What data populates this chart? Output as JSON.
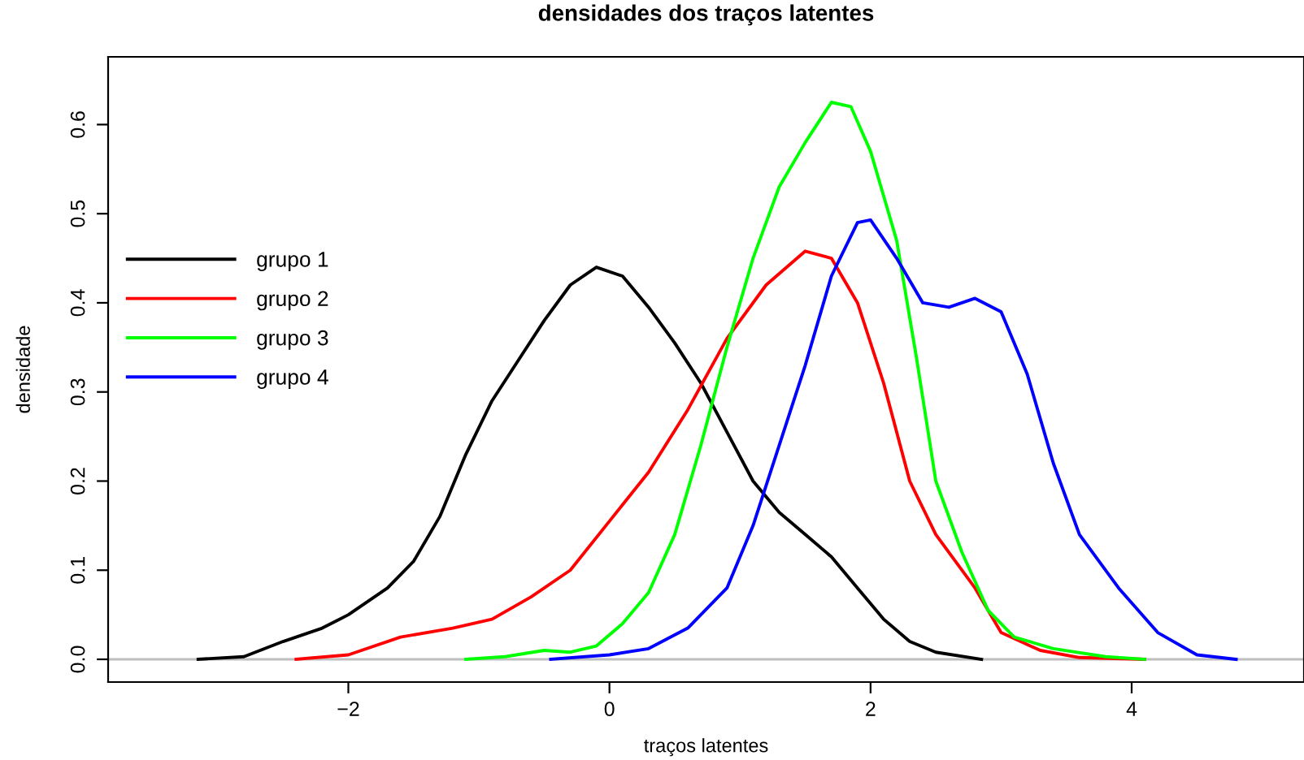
{
  "chart_data": {
    "type": "line",
    "title": "densidades dos traços latentes",
    "xlabel": "traços latentes",
    "ylabel": "densidade",
    "xlim": [
      -3.84,
      5.32
    ],
    "ylim": [
      -0.0255,
      0.676
    ],
    "xticks": [
      {
        "value": -2,
        "label": "−2"
      },
      0,
      2,
      4
    ],
    "yticks": [
      {
        "value": 0,
        "label": "0.0"
      },
      0.1,
      0.2,
      0.3,
      0.4,
      0.5,
      0.6
    ],
    "grid": false,
    "legend": "top left",
    "line_style": "solid",
    "marker": "none",
    "ref_lines": [
      {
        "axis": "y",
        "value": 0,
        "color": "#bebebe"
      }
    ],
    "series": [
      {
        "name": "grupo 1",
        "color": "#000000",
        "x": [
          -3.15,
          -2.8,
          -2.5,
          -2.2,
          -2.0,
          -1.7,
          -1.5,
          -1.3,
          -1.1,
          -0.9,
          -0.7,
          -0.5,
          -0.3,
          -0.1,
          0.1,
          0.3,
          0.5,
          0.7,
          0.9,
          1.1,
          1.3,
          1.5,
          1.7,
          1.9,
          2.1,
          2.3,
          2.5,
          2.85
        ],
        "values": [
          0,
          0.003,
          0.02,
          0.035,
          0.05,
          0.08,
          0.11,
          0.16,
          0.23,
          0.29,
          0.335,
          0.38,
          0.42,
          0.44,
          0.43,
          0.395,
          0.355,
          0.31,
          0.255,
          0.2,
          0.165,
          0.14,
          0.115,
          0.08,
          0.045,
          0.02,
          0.008,
          0
        ]
      },
      {
        "name": "grupo 2",
        "color": "#ff0000",
        "x": [
          -2.4,
          -2.0,
          -1.6,
          -1.2,
          -0.9,
          -0.6,
          -0.3,
          0.0,
          0.3,
          0.6,
          0.9,
          1.2,
          1.5,
          1.7,
          1.9,
          2.1,
          2.3,
          2.5,
          2.8,
          3.0,
          3.3,
          3.6,
          4.1
        ],
        "values": [
          0,
          0.005,
          0.025,
          0.035,
          0.045,
          0.07,
          0.1,
          0.155,
          0.21,
          0.28,
          0.36,
          0.42,
          0.458,
          0.45,
          0.4,
          0.31,
          0.2,
          0.14,
          0.08,
          0.03,
          0.01,
          0.002,
          0
        ]
      },
      {
        "name": "grupo 3",
        "color": "#00ff00",
        "x": [
          -1.1,
          -0.8,
          -0.5,
          -0.3,
          -0.1,
          0.1,
          0.3,
          0.5,
          0.7,
          0.9,
          1.1,
          1.3,
          1.5,
          1.7,
          1.85,
          2.0,
          2.2,
          2.35,
          2.5,
          2.7,
          2.9,
          3.1,
          3.4,
          3.8,
          4.1
        ],
        "values": [
          0,
          0.003,
          0.01,
          0.008,
          0.015,
          0.04,
          0.075,
          0.14,
          0.24,
          0.35,
          0.45,
          0.53,
          0.58,
          0.625,
          0.62,
          0.57,
          0.47,
          0.34,
          0.2,
          0.12,
          0.055,
          0.025,
          0.012,
          0.003,
          0
        ]
      },
      {
        "name": "grupo 4",
        "color": "#0000ff",
        "x": [
          -0.45,
          0.0,
          0.3,
          0.6,
          0.9,
          1.1,
          1.3,
          1.5,
          1.7,
          1.9,
          2.0,
          2.2,
          2.4,
          2.6,
          2.8,
          3.0,
          3.2,
          3.4,
          3.6,
          3.9,
          4.2,
          4.5,
          4.8
        ],
        "values": [
          0,
          0.005,
          0.012,
          0.035,
          0.08,
          0.15,
          0.24,
          0.33,
          0.43,
          0.49,
          0.493,
          0.45,
          0.4,
          0.395,
          0.405,
          0.39,
          0.32,
          0.22,
          0.14,
          0.08,
          0.03,
          0.005,
          0
        ]
      }
    ]
  }
}
